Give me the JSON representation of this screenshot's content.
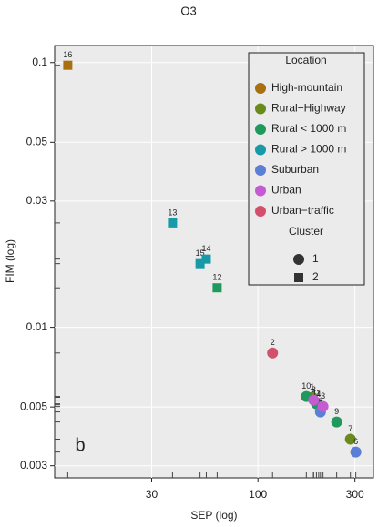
{
  "chart_data": {
    "type": "scatter",
    "title": "O3",
    "x_label": "SEP (log)",
    "y_label": "FIM (log)",
    "panel_label": "b",
    "log_x": true,
    "log_y": true,
    "grid": true,
    "legend_position": "upper right",
    "xlim": [
      10,
      370
    ],
    "ylim": [
      0.0027,
      0.116
    ],
    "xticks": [
      30,
      100,
      300
    ],
    "yticks": [
      0.003,
      0.005,
      0.01,
      0.03,
      0.05,
      0.1
    ],
    "legend_title": "Location",
    "cluster_title": "Cluster",
    "clusters": [
      {
        "label": "1",
        "marker": "circle"
      },
      {
        "label": "2",
        "marker": "square"
      }
    ],
    "series": [
      {
        "name": "High-mountain",
        "color": "#a8700f",
        "x": [
          11.6
        ],
        "values": [
          0.0977
        ],
        "labels": [
          "16"
        ],
        "markers": [
          "square"
        ]
      },
      {
        "name": "Rural−Highway",
        "color": "#6b8a1c",
        "x": [
          185,
          199,
          285
        ],
        "values": [
          0.00544,
          0.0051,
          0.00378
        ],
        "labels": [
          "1",
          "4",
          "7"
        ],
        "markers": [
          "circle",
          "circle",
          "circle"
        ]
      },
      {
        "name": "Rural < 1000 m",
        "color": "#1f9a5c",
        "x": [
          63,
          173,
          194,
          244
        ],
        "values": [
          0.0141,
          0.00548,
          0.00514,
          0.00439
        ],
        "labels": [
          "12",
          "10",
          "11",
          "9"
        ],
        "markers": [
          "square",
          "circle",
          "circle",
          "circle"
        ]
      },
      {
        "name": "Rural > 1000 m",
        "color": "#1899a8",
        "x": [
          38,
          51.9,
          55.7
        ],
        "values": [
          0.0248,
          0.0174,
          0.0181
        ],
        "labels": [
          "13",
          "15",
          "14"
        ],
        "markers": [
          "square",
          "square",
          "square"
        ]
      },
      {
        "name": "Suburban",
        "color": "#5b7ed6",
        "x": [
          203,
          303
        ],
        "values": [
          0.00479,
          0.00338
        ],
        "labels": [
          "5",
          "6"
        ],
        "markers": [
          "circle",
          "circle"
        ]
      },
      {
        "name": "Urban",
        "color": "#c45bd2",
        "x": [
          188,
          209
        ],
        "values": [
          0.00531,
          0.00502
        ],
        "labels": [
          "8",
          "3"
        ],
        "markers": [
          "circle",
          "circle"
        ]
      },
      {
        "name": "Urban−traffic",
        "color": "#d2506c",
        "x": [
          118
        ],
        "values": [
          0.008
        ],
        "labels": [
          "2"
        ],
        "markers": [
          "circle"
        ]
      }
    ]
  }
}
